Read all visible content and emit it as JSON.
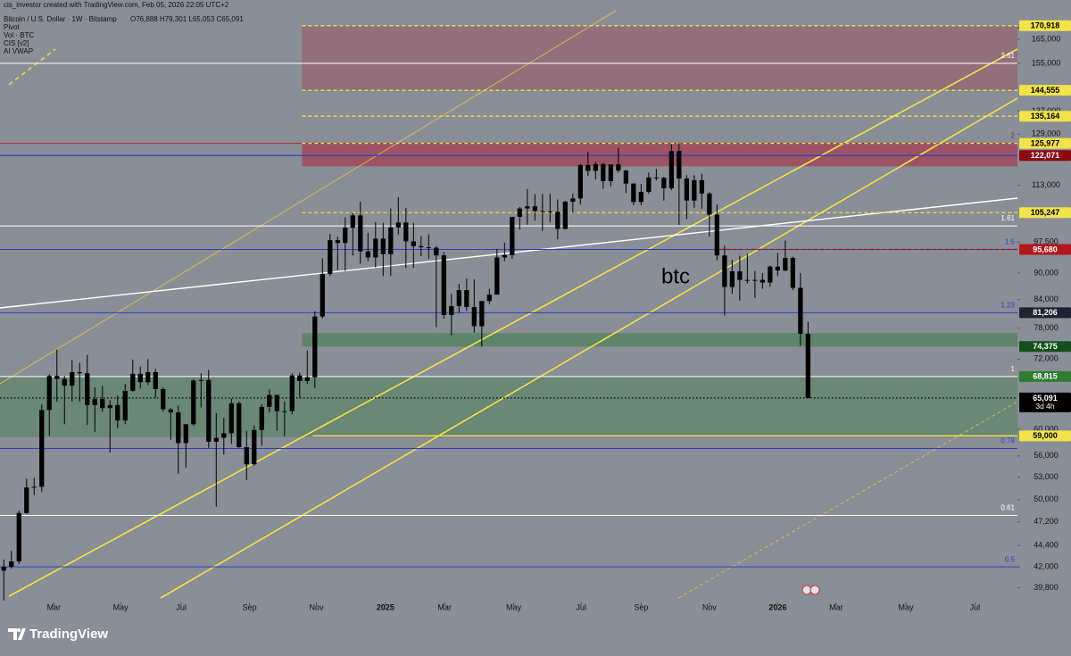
{
  "header": {
    "credit": "cis_investor created with TradingView.com, Feb 05, 2026 22:05 UTC+2"
  },
  "chart_data": {
    "type": "candlestick",
    "legend": {
      "symbol": "Bitcoin / U.S. Dollar · 1W · Bitstamp",
      "ohlc": "O76,888 H79,301 L65,053 C65,091",
      "indicators": [
        "Pivot",
        "Vol · BTC",
        "CIS [v2]",
        "AI VWAP"
      ]
    },
    "annotation": "btc",
    "log_scale": true,
    "color": "#000000",
    "open": [
      41600,
      42000,
      42600,
      48300,
      51600,
      51700,
      63100,
      68900,
      68400,
      67200,
      69600,
      69400,
      63900,
      64900,
      63400,
      63900,
      61400,
      66300,
      69300,
      67800,
      69600,
      66600,
      63200,
      62700,
      57900,
      60800,
      68100,
      68200,
      58100,
      58700,
      59400,
      64200,
      57300,
      54800,
      59900,
      63600,
      65600,
      62900,
      62900,
      69000,
      68000,
      68700,
      80400,
      89800,
      98000,
      97300,
      101200,
      104500,
      95200,
      93700,
      98400,
      94500,
      101300,
      102600,
      97700,
      96500,
      96200,
      96100,
      94200,
      80700,
      82600,
      86100,
      82400,
      78400,
      83700,
      85100,
      93700,
      94300,
      104100,
      106400,
      107000,
      105700,
      105600,
      105500,
      100900,
      108300,
      109200,
      119100,
      117300,
      119400,
      114200,
      119300,
      117400,
      113500,
      108200,
      111100,
      115300,
      115200,
      112100,
      123500,
      115000,
      108600,
      114500,
      110600,
      104700,
      94200,
      86800,
      90400,
      88400,
      88200,
      88400,
      87800,
      91500,
      90600,
      93600,
      86600,
      76888
    ],
    "high": [
      42800,
      43800,
      48600,
      52800,
      52900,
      64000,
      69200,
      73800,
      68900,
      71800,
      71300,
      72800,
      66900,
      67200,
      64700,
      65500,
      67500,
      71900,
      70600,
      72000,
      70200,
      66900,
      63400,
      63800,
      60800,
      68400,
      69400,
      70000,
      62600,
      61800,
      65000,
      64500,
      59800,
      60600,
      64100,
      66500,
      65600,
      64500,
      69400,
      69500,
      73600,
      81500,
      93500,
      99600,
      98900,
      104000,
      105200,
      108300,
      99900,
      102700,
      102500,
      106400,
      109600,
      106500,
      102500,
      99000,
      99500,
      96500,
      95000,
      85300,
      87500,
      88700,
      88500,
      83700,
      86400,
      95800,
      97400,
      104100,
      106800,
      111900,
      110400,
      110500,
      110600,
      108900,
      108500,
      110600,
      119500,
      123200,
      120200,
      119800,
      119300,
      124500,
      117600,
      113600,
      113400,
      116800,
      117900,
      115500,
      125700,
      126200,
      116000,
      116000,
      116400,
      111000,
      107500,
      96600,
      93100,
      94100,
      94600,
      90500,
      90000,
      91800,
      94800,
      97900,
      93900,
      90000,
      79301
    ],
    "low": [
      38500,
      41800,
      42300,
      48200,
      50600,
      51000,
      59000,
      64500,
      60800,
      64500,
      64500,
      60700,
      59600,
      62800,
      56500,
      60200,
      60800,
      66100,
      66700,
      67300,
      65100,
      62800,
      58400,
      53500,
      54300,
      60600,
      63500,
      57200,
      49100,
      56200,
      57800,
      57200,
      52600,
      54600,
      57500,
      62700,
      59800,
      58900,
      62400,
      65100,
      67500,
      66800,
      80000,
      89300,
      90700,
      90500,
      94200,
      92200,
      92800,
      91300,
      89300,
      89300,
      99500,
      91200,
      91200,
      94000,
      93400,
      78200,
      80000,
      76600,
      81200,
      81600,
      77100,
      74400,
      83000,
      85100,
      92800,
      93400,
      100700,
      102000,
      103100,
      100400,
      102600,
      98200,
      100800,
      105100,
      107500,
      115800,
      114700,
      112000,
      112700,
      116800,
      110700,
      107300,
      107300,
      110600,
      114400,
      108600,
      111600,
      102000,
      103500,
      106600,
      106300,
      98900,
      93000,
      80600,
      85300,
      83800,
      87600,
      84400,
      86400,
      86800,
      89300,
      90400,
      86100,
      74500,
      65053
    ],
    "close": [
      42000,
      42600,
      48300,
      51600,
      51700,
      63100,
      68900,
      68400,
      67200,
      69600,
      69400,
      63900,
      64900,
      63400,
      63900,
      61400,
      66300,
      69300,
      67800,
      69600,
      66600,
      63200,
      62700,
      57900,
      60800,
      68100,
      68200,
      58100,
      58700,
      59400,
      64200,
      57300,
      54800,
      59900,
      63600,
      65600,
      62900,
      62900,
      69000,
      68000,
      68700,
      80400,
      89800,
      98000,
      97300,
      101200,
      104500,
      95200,
      93700,
      98400,
      94500,
      101300,
      102600,
      97700,
      96500,
      96200,
      96100,
      94200,
      80700,
      82600,
      86100,
      82400,
      78400,
      83700,
      85100,
      93700,
      94300,
      104100,
      106400,
      107000,
      105700,
      105600,
      105500,
      100900,
      108300,
      109200,
      119100,
      117300,
      119400,
      114200,
      119300,
      117400,
      113500,
      108200,
      111100,
      115300,
      115200,
      112100,
      123500,
      115000,
      108600,
      114500,
      110600,
      104700,
      94200,
      86800,
      90400,
      88400,
      88200,
      88400,
      87800,
      91500,
      90600,
      93600,
      86600,
      76888,
      65091
    ],
    "xlim": [
      -0.5,
      133.6
    ],
    "xticks": [
      {
        "value": 6.6,
        "label": "Mar"
      },
      {
        "value": 15.4,
        "label": "May"
      },
      {
        "value": 23.4,
        "label": "Jul"
      },
      {
        "value": 32.4,
        "label": "Sep"
      },
      {
        "value": 41.2,
        "label": "Nov"
      },
      {
        "value": 50.3,
        "label": "2025"
      },
      {
        "value": 58.1,
        "label": "Mar"
      },
      {
        "value": 67.2,
        "label": "May"
      },
      {
        "value": 76.1,
        "label": "Jul"
      },
      {
        "value": 84.0,
        "label": "Sep"
      },
      {
        "value": 93.0,
        "label": "Nov"
      },
      {
        "value": 102.0,
        "label": "2026"
      },
      {
        "value": 109.7,
        "label": "Mar"
      },
      {
        "value": 118.9,
        "label": "May"
      },
      {
        "value": 128.0,
        "label": "Jul"
      }
    ],
    "ylim": [
      38300,
      177700
    ],
    "yticks": [
      {
        "value": 170000,
        "label": "170,000"
      },
      {
        "value": 165000,
        "label": "165,000"
      },
      {
        "value": 155000,
        "label": "155,000"
      },
      {
        "value": 137000,
        "label": "137,000"
      },
      {
        "value": 129000,
        "label": "129,000"
      },
      {
        "value": 113000,
        "label": "113,000"
      },
      {
        "value": 97500,
        "label": "97,500"
      },
      {
        "value": 90000,
        "label": "90,000"
      },
      {
        "value": 84000,
        "label": "84,000"
      },
      {
        "value": 78000,
        "label": "78,000"
      },
      {
        "value": 72000,
        "label": "72,000"
      },
      {
        "value": 60000,
        "label": "60,000"
      },
      {
        "value": 56000,
        "label": "56,000"
      },
      {
        "value": 53000,
        "label": "53,000"
      },
      {
        "value": 50000,
        "label": "50,000"
      },
      {
        "value": 47200,
        "label": "47,200"
      },
      {
        "value": 44400,
        "label": "44,400"
      },
      {
        "value": 42000,
        "label": "42,000"
      },
      {
        "value": 39800,
        "label": "39,800"
      }
    ],
    "zones": [
      {
        "low": 144555,
        "high": 170918,
        "from": 39.3,
        "color": "rgba(160,60,75,0.38)"
      },
      {
        "low": 118700,
        "high": 125977,
        "from": 39.3,
        "color": "rgba(175,35,60,0.55)"
      },
      {
        "low": 74375,
        "high": 77000,
        "from": 39.3,
        "color": "rgba(40,120,50,0.45)"
      },
      {
        "low": 58800,
        "high": 68815,
        "from": -0.5,
        "color": "rgba(60,125,70,0.4)"
      }
    ],
    "fib_levels": [
      {
        "label": "2.61",
        "value": 155000,
        "color": "#ffffff"
      },
      {
        "label": "2",
        "value": 125977,
        "color": "#9c2740"
      },
      {
        "label": "1.61",
        "value": 101700,
        "color": "#ffffff"
      },
      {
        "label": "1.5",
        "value": 95680,
        "color": "#2a3fbf"
      },
      {
        "label": "1.23",
        "value": 81206,
        "color": "#2a3fbf"
      },
      {
        "label": "1",
        "value": 68815,
        "color": "#ffffff"
      },
      {
        "label": "0.78",
        "value": 57100,
        "color": "#2a3fbf"
      },
      {
        "label": "0.61",
        "value": 48000,
        "color": "#ffffff"
      },
      {
        "label": "0.5",
        "value": 42000,
        "color": "#2a3fbf"
      }
    ],
    "price_tags": [
      {
        "value": 170918,
        "label": "170,918",
        "color": "#f2e34a",
        "text_color": "#000000",
        "line": "dashed",
        "from": 39.3
      },
      {
        "value": 144555,
        "label": "144,555",
        "color": "#f2e34a",
        "text_color": "#000000",
        "line": "dashed",
        "from": 39.3
      },
      {
        "value": 135164,
        "label": "135,164",
        "color": "#f2e34a",
        "text_color": "#000000",
        "line": "dashed",
        "from": 39.3
      },
      {
        "value": 125977,
        "label": "125,977",
        "color": "#f2e34a",
        "text_color": "#000000",
        "line": "dashed",
        "from": 39.3
      },
      {
        "value": 122071,
        "label": "122,071",
        "color": "#8b0a14",
        "text_color": "#ffffff",
        "line": "solid",
        "line_color": "#2a3fbf",
        "from": -0.5
      },
      {
        "value": 105247,
        "label": "105,247",
        "color": "#f2e34a",
        "text_color": "#000000",
        "line": "dashed",
        "from": 39.3
      },
      {
        "value": 95680,
        "label": "95,680",
        "color": "#b3161f",
        "text_color": "#ffffff",
        "line": "dashed",
        "from": 93.6
      },
      {
        "value": 81206,
        "label": "81,206",
        "color": "#1c2333",
        "text_color": "#ffffff"
      },
      {
        "value": 74375,
        "label": "74,375",
        "color": "#15501c",
        "text_color": "#ffffff"
      },
      {
        "value": 68815,
        "label": "68,815",
        "color": "#2e7d32",
        "text_color": "#ffffff"
      },
      {
        "value": 65091,
        "label": "65,091",
        "color": "#000000",
        "text_color": "#ffffff",
        "line": "dotted",
        "from": -0.5,
        "countdown": "3d 4h"
      },
      {
        "value": 59000,
        "label": "59,000",
        "color": "#f2e34a",
        "text_color": "#000000",
        "line": "solid",
        "from": 40.7
      }
    ]
  },
  "footer": {
    "brand": "TradingView"
  }
}
